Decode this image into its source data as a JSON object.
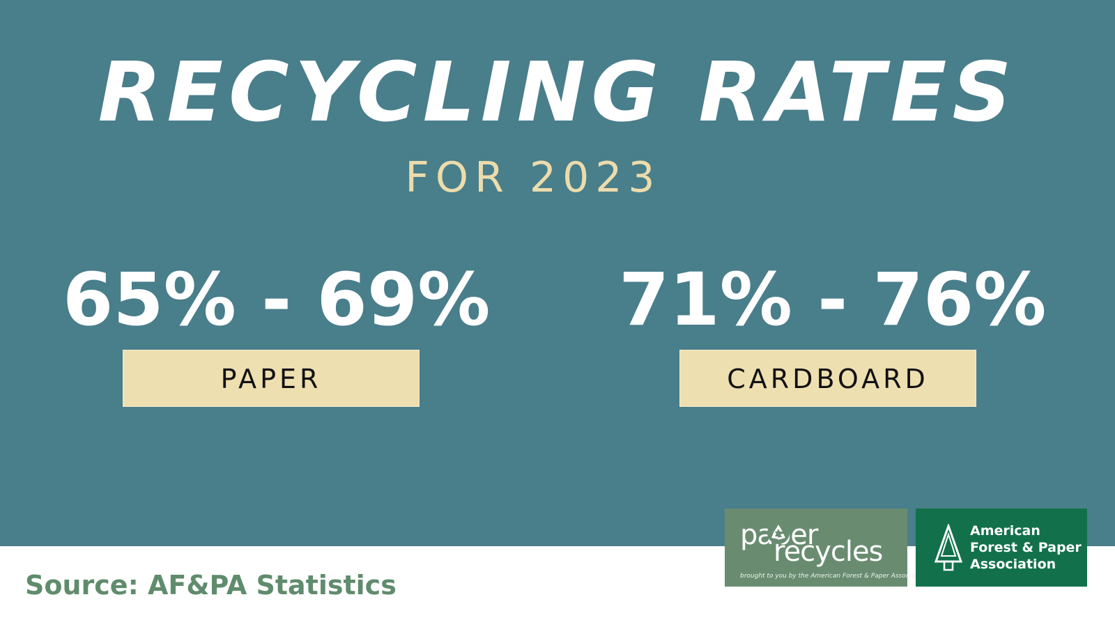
{
  "title": "RECYCLING RATES",
  "subtitle": "FOR 2023",
  "stats": [
    {
      "value": "65% - 69%",
      "label": "PAPER"
    },
    {
      "value": "71% - 76%",
      "label": "CARDBOARD"
    }
  ],
  "source": "Source: AF&PA Statistics",
  "logos": {
    "paper_recycles": {
      "word_top": "paper",
      "word_bottom": "recycles",
      "tagline": "brought to you by the American Forest & Paper Association"
    },
    "afpa": {
      "line1": "American",
      "line2": "Forest & Paper",
      "line3": "Association"
    }
  },
  "colors": {
    "panel": "#497e8b",
    "subtitle": "#ecdcac",
    "label_box": "#eedfb0",
    "source_text": "#5f8c6c",
    "paper_recycles_bg": "#698c71",
    "afpa_bg": "#12714b"
  },
  "icons": [
    "recycle-icon",
    "tree-icon"
  ]
}
